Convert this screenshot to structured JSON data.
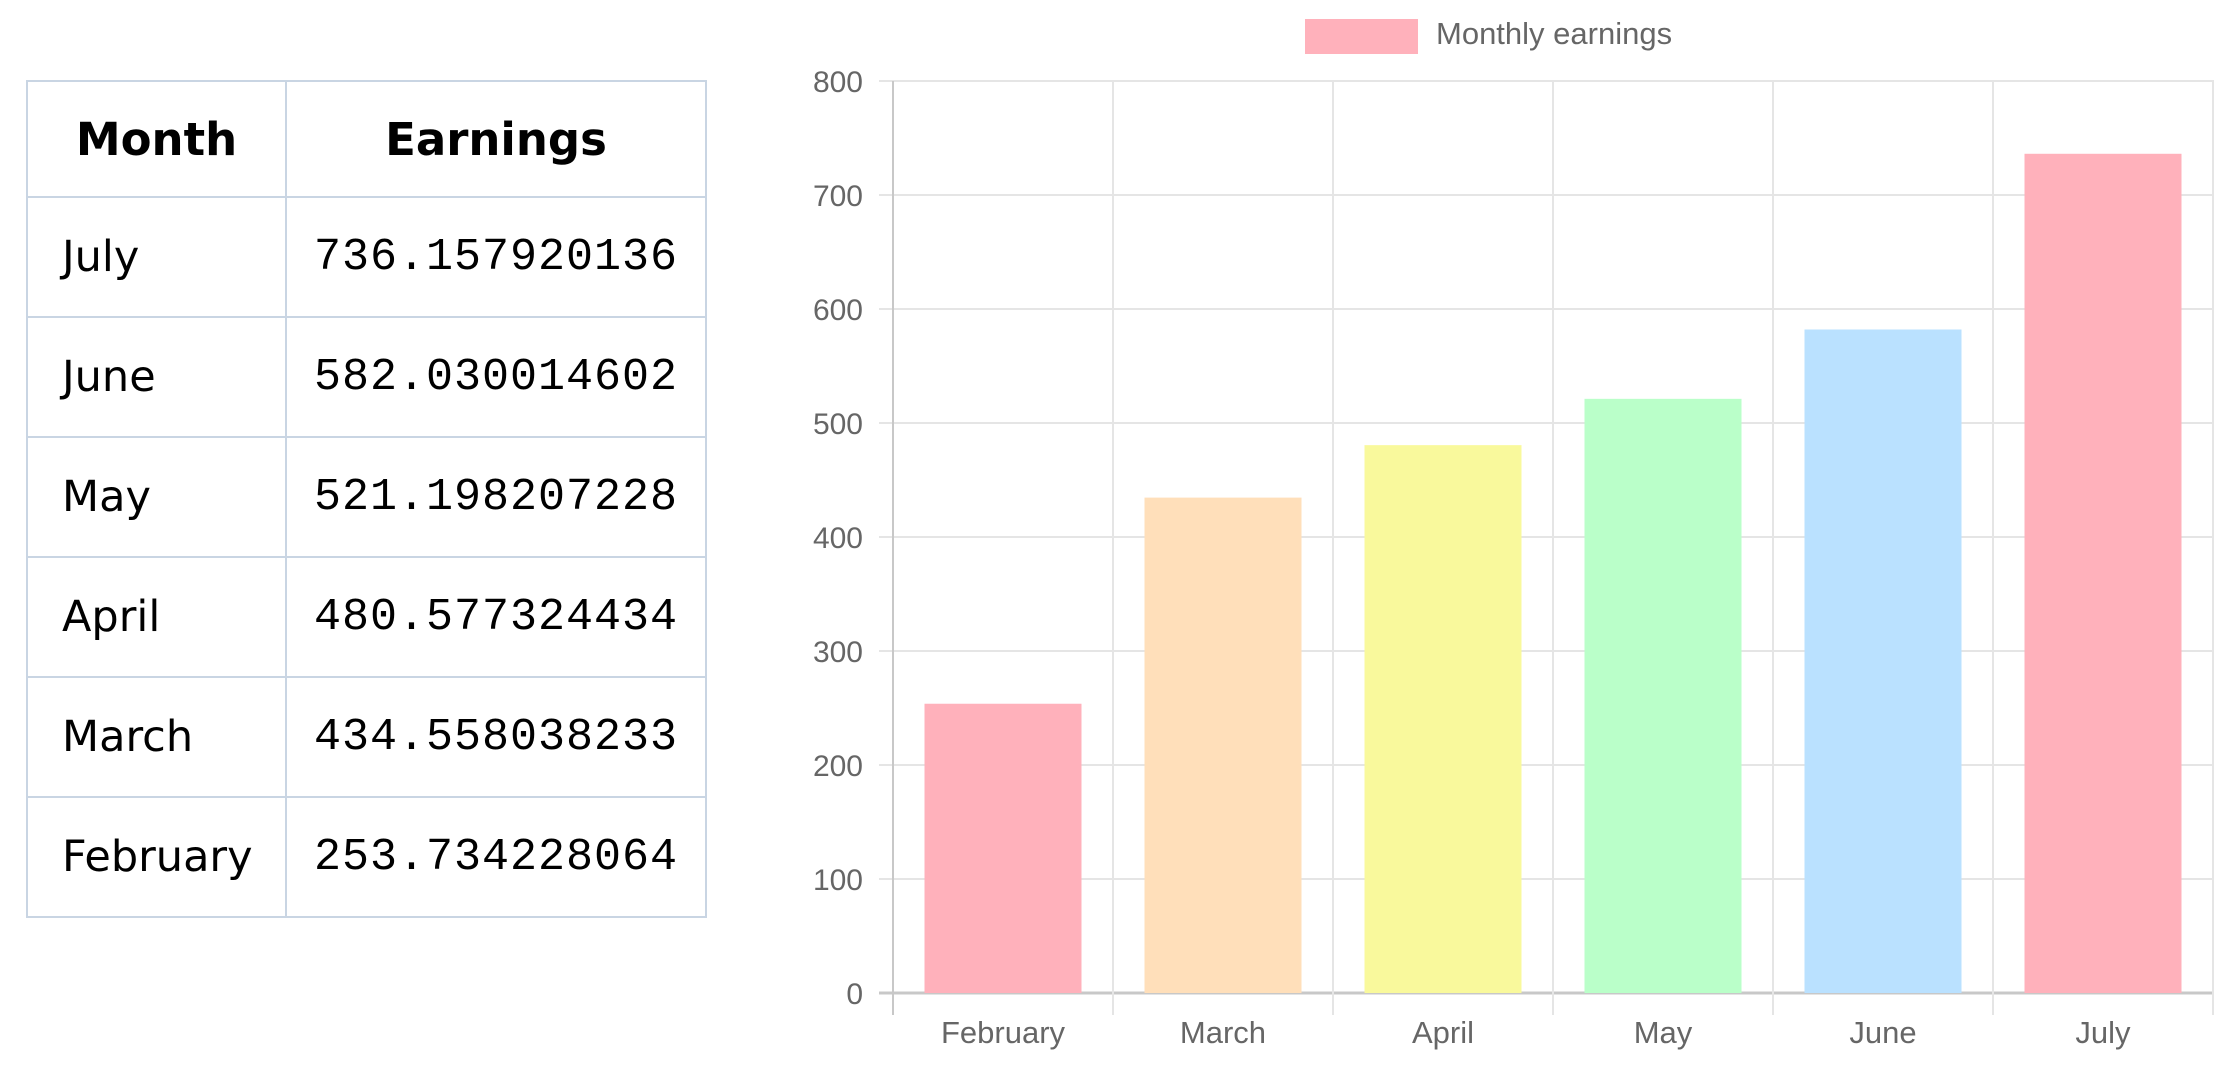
{
  "table": {
    "headers": [
      "Month",
      "Earnings"
    ],
    "rows": [
      [
        "July",
        "736.157920136"
      ],
      [
        "June",
        "582.030014602"
      ],
      [
        "May",
        "521.198207228"
      ],
      [
        "April",
        "480.577324434"
      ],
      [
        "March",
        "434.558038233"
      ],
      [
        "February",
        "253.734228064"
      ]
    ]
  },
  "chart_data": {
    "type": "bar",
    "categories": [
      "February",
      "March",
      "April",
      "May",
      "June",
      "July"
    ],
    "series": [
      {
        "name": "Monthly earnings",
        "values": [
          253.734228064,
          434.558038233,
          480.577324434,
          521.198207228,
          582.030014602,
          736.157920136
        ]
      }
    ],
    "bar_colors": [
      "#ffb1bb",
      "#ffdfba",
      "#f9f99c",
      "#baffc9",
      "#bae1ff",
      "#ffb1bb"
    ],
    "legend_color": "#ffb1bb",
    "legend_position": "top",
    "grid": true,
    "ylim": [
      0,
      800
    ],
    "yticks": [
      0,
      100,
      200,
      300,
      400,
      500,
      600,
      700,
      800
    ],
    "title": "",
    "xlabel": "",
    "ylabel": ""
  }
}
